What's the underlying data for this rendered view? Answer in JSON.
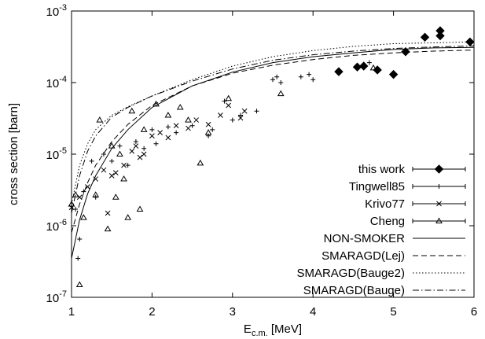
{
  "chart_data": {
    "type": "scatter",
    "xlabel": "Ec.m. [MeV]",
    "ylabel": "cross section [barn]",
    "xlim": [
      1,
      6
    ],
    "xticks": [
      1,
      2,
      3,
      4,
      5,
      6
    ],
    "ylim": [
      1e-07,
      0.001
    ],
    "log_y": true,
    "yticks": [
      {
        "value": 0.001,
        "label": "10-3"
      },
      {
        "value": 0.0001,
        "label": "10-4"
      },
      {
        "value": 1e-05,
        "label": "10-5"
      },
      {
        "value": 1e-06,
        "label": "10-6"
      },
      {
        "value": 1e-07,
        "label": "10-7"
      }
    ],
    "legend": "lower right",
    "series": [
      {
        "name": "this work",
        "color": "#000000",
        "marker": "diamond",
        "x": [
          4.32,
          4.55,
          4.63,
          5.0,
          4.8,
          5.15,
          5.39,
          5.58,
          5.58,
          5.95
        ],
        "values": [
          0.000142,
          0.000165,
          0.00017,
          0.00013,
          0.00015,
          0.00027,
          0.00043,
          0.00045,
          0.00053,
          0.00037
        ]
      },
      {
        "name": "Tingwell85",
        "color": "#000000",
        "marker": "plus",
        "x": [
          1.05,
          1.08,
          1.1,
          1.15,
          1.25,
          1.3,
          1.4,
          1.5,
          1.6,
          1.7,
          1.8,
          1.9,
          2.0,
          2.05,
          2.2,
          2.3,
          2.5,
          2.7,
          2.75,
          2.9,
          3.0,
          3.1,
          3.3,
          3.5,
          3.55,
          3.6,
          3.85,
          3.95,
          4.0,
          4.7
        ],
        "values": [
          1.7e-06,
          3.5e-07,
          6.5e-07,
          3e-06,
          8e-06,
          2.5e-06,
          1e-05,
          8e-06,
          1.3e-05,
          7e-06,
          1.5e-05,
          1.2e-05,
          2.2e-05,
          1.4e-05,
          2.4e-05,
          2e-05,
          2.5e-05,
          1.8e-05,
          2.2e-05,
          5.5e-05,
          3e-05,
          3.5e-05,
          4e-05,
          0.00011,
          0.00012,
          0.0001,
          0.00012,
          0.00013,
          0.00011,
          0.00019
        ]
      },
      {
        "name": "Krivo77",
        "color": "#000000",
        "marker": "cross",
        "x": [
          1.0,
          1.1,
          1.2,
          1.3,
          1.4,
          1.45,
          1.5,
          1.55,
          1.65,
          1.75,
          1.8,
          1.85,
          1.9,
          2.0,
          2.1,
          2.2,
          2.3,
          2.45,
          2.55,
          2.7,
          2.85,
          2.95,
          3.1,
          3.15
        ],
        "values": [
          1.8e-06,
          2.5e-06,
          3.5e-06,
          4.5e-06,
          6e-06,
          1.5e-06,
          5e-06,
          5.5e-06,
          7e-06,
          1.1e-05,
          1.3e-05,
          9e-06,
          1e-05,
          1.8e-05,
          2e-05,
          1.7e-05,
          2.5e-05,
          2.3e-05,
          3e-05,
          2.6e-05,
          3.5e-05,
          4.8e-05,
          3.2e-05,
          4e-05
        ]
      },
      {
        "name": "Cheng",
        "color": "#000000",
        "marker": "triangle",
        "x": [
          1.0,
          1.05,
          1.1,
          1.15,
          1.3,
          1.35,
          1.45,
          1.5,
          1.55,
          1.6,
          1.65,
          1.7,
          1.75,
          1.85,
          1.9,
          2.05,
          2.2,
          2.35,
          2.45,
          2.6,
          2.7,
          2.95,
          3.6,
          4.75
        ],
        "values": [
          2e-06,
          2.7e-06,
          1.5e-07,
          1.3e-06,
          2.7e-06,
          3e-05,
          9e-07,
          1.3e-05,
          2.5e-06,
          1e-05,
          4.5e-06,
          1.3e-06,
          4e-05,
          1.7e-06,
          2.2e-05,
          5e-05,
          3.5e-05,
          4.5e-05,
          3e-05,
          7.5e-06,
          2e-05,
          6e-05,
          7e-05,
          0.00016
        ]
      },
      {
        "name": "NON-SMOKER",
        "color": "#000000",
        "line": "solid",
        "x": [
          1,
          1.1,
          1.2,
          1.3,
          1.5,
          1.7,
          2,
          2.5,
          3,
          3.5,
          4,
          4.5,
          5,
          5.5,
          6
        ],
        "values": [
          3.5e-07,
          1.2e-06,
          2.8e-06,
          5e-06,
          1.2e-05,
          2.2e-05,
          4.5e-05,
          9e-05,
          0.00014,
          0.00019,
          0.00023,
          0.00026,
          0.00029,
          0.000305,
          0.00031
        ]
      },
      {
        "name": "SMARAGD(Lej)",
        "color": "#000000",
        "line": "dashed",
        "x": [
          1,
          1.1,
          1.2,
          1.3,
          1.5,
          1.7,
          2,
          2.5,
          3,
          3.5,
          4,
          4.5,
          5,
          5.5,
          6
        ],
        "values": [
          8e-07,
          2e-06,
          4e-06,
          7e-06,
          1.5e-05,
          2.6e-05,
          4.8e-05,
          9e-05,
          0.000135,
          0.000175,
          0.00021,
          0.00024,
          0.00026,
          0.000275,
          0.000285
        ]
      },
      {
        "name": "SMARAGD(Bauge2)",
        "color": "#000000",
        "line": "dotted",
        "x": [
          1,
          1.1,
          1.2,
          1.3,
          1.5,
          1.7,
          2,
          2.5,
          3,
          3.5,
          4,
          4.5,
          5,
          5.5,
          6
        ],
        "values": [
          2e-06,
          7e-06,
          1.4e-05,
          2.2e-05,
          3.5e-05,
          4.6e-05,
          6.5e-05,
          0.00011,
          0.00017,
          0.00023,
          0.00028,
          0.00032,
          0.00035,
          0.00036,
          0.00037
        ]
      },
      {
        "name": "SMARAGD(Bauge)",
        "color": "#000000",
        "line": "dashdot",
        "x": [
          1,
          1.1,
          1.2,
          1.3,
          1.5,
          1.7,
          2,
          2.5,
          3,
          3.5,
          4,
          4.5,
          5,
          5.5,
          6
        ],
        "values": [
          1.5e-06,
          5e-06,
          1.1e-05,
          1.8e-05,
          3.3e-05,
          4.5e-05,
          6.5e-05,
          0.000105,
          0.000155,
          0.000205,
          0.000245,
          0.000275,
          0.0003,
          0.000315,
          0.000325
        ]
      }
    ]
  }
}
